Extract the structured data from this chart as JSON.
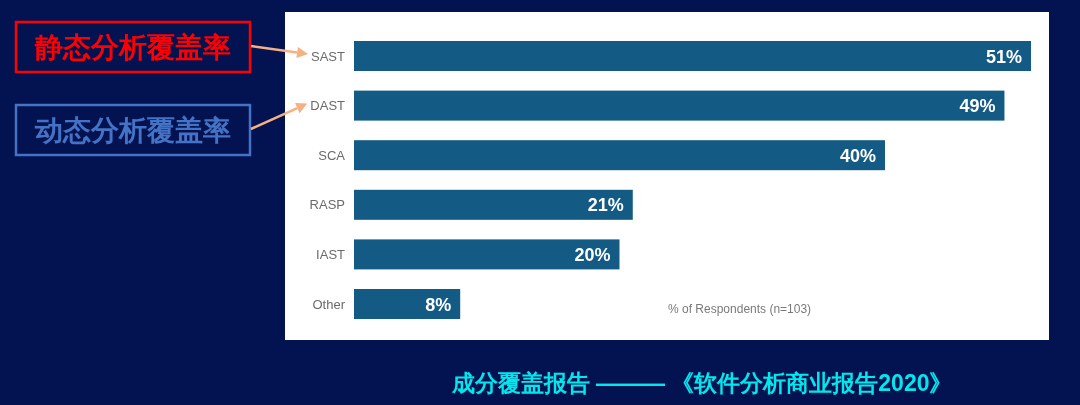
{
  "chart_data": {
    "type": "bar",
    "orientation": "horizontal",
    "title": "成分覆盖报告 ——— 《软件分析商业报告2020》",
    "categories": [
      "SAST",
      "DAST",
      "SCA",
      "RASP",
      "IAST",
      "Other"
    ],
    "values": [
      51,
      49,
      40,
      21,
      20,
      8
    ],
    "value_labels": [
      "51%",
      "49%",
      "40%",
      "21%",
      "20%",
      "8%"
    ],
    "color": "#135a84",
    "xlabel": "% of Respondents (n=103)",
    "annotations": [
      "静态分析覆盖率",
      "动态分析覆盖率"
    ]
  }
}
